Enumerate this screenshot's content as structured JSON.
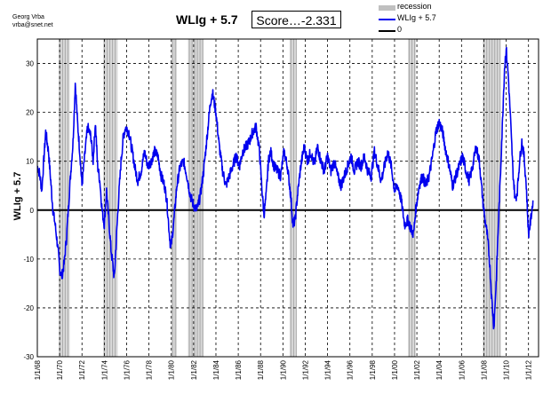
{
  "credit": {
    "line1": "Georg Vrba",
    "line2": "vrba@snet.net"
  },
  "score": "Score…-2.331",
  "chart_data": {
    "type": "line",
    "title": "WLIg + 5.7",
    "ylabel": "WLIg + 5.7",
    "xlabel": "",
    "ylim": [
      -30,
      35
    ],
    "xlim": [
      1968.0,
      2012.9
    ],
    "yticks": [
      -30,
      -20,
      -10,
      0,
      10,
      20,
      30
    ],
    "xtick_labels": [
      "1/1/68",
      "1/1/70",
      "1/1/72",
      "1/1/74",
      "1/1/76",
      "1/1/78",
      "1/1/80",
      "1/1/82",
      "1/1/84",
      "1/1/86",
      "1/1/88",
      "1/1/90",
      "1/1/92",
      "1/1/94",
      "1/1/96",
      "1/1/98",
      "1/1/00",
      "1/1/02",
      "1/1/04",
      "1/1/06",
      "1/1/08",
      "1/1/10",
      "1/1/12"
    ],
    "grid": true,
    "legend_position": "top-right",
    "recessions": [
      [
        1969.9,
        1970.9
      ],
      [
        1973.9,
        1975.2
      ],
      [
        1980.0,
        1980.5
      ],
      [
        1981.5,
        1982.9
      ],
      [
        1990.6,
        1991.2
      ],
      [
        2001.2,
        2001.9
      ],
      [
        2007.9,
        2009.5
      ]
    ],
    "series": [
      {
        "name": "recession",
        "color": "#c0c0c0"
      },
      {
        "name": "WLIg + 5.7",
        "color": "#0000ee",
        "points": [
          [
            1968.0,
            9
          ],
          [
            1968.2,
            7.5
          ],
          [
            1968.4,
            4
          ],
          [
            1968.6,
            11
          ],
          [
            1968.75,
            16
          ],
          [
            1969.0,
            12
          ],
          [
            1969.2,
            6
          ],
          [
            1969.4,
            0
          ],
          [
            1969.6,
            -3
          ],
          [
            1969.8,
            -7
          ],
          [
            1970.0,
            -12
          ],
          [
            1970.2,
            -13.5
          ],
          [
            1970.4,
            -11
          ],
          [
            1970.6,
            -6
          ],
          [
            1970.8,
            1
          ],
          [
            1971.0,
            8
          ],
          [
            1971.2,
            14
          ],
          [
            1971.3,
            20
          ],
          [
            1971.4,
            26
          ],
          [
            1971.6,
            18
          ],
          [
            1971.8,
            12
          ],
          [
            1972.0,
            5
          ],
          [
            1972.2,
            10
          ],
          [
            1972.5,
            17
          ],
          [
            1972.8,
            15
          ],
          [
            1973.0,
            10
          ],
          [
            1973.2,
            18
          ],
          [
            1973.4,
            9
          ],
          [
            1973.6,
            6
          ],
          [
            1973.8,
            0
          ],
          [
            1974.0,
            -3
          ],
          [
            1974.2,
            4
          ],
          [
            1974.4,
            -2
          ],
          [
            1974.6,
            -8
          ],
          [
            1974.8,
            -12
          ],
          [
            1974.9,
            -14
          ],
          [
            1975.1,
            -5
          ],
          [
            1975.3,
            3
          ],
          [
            1975.5,
            10
          ],
          [
            1975.7,
            15
          ],
          [
            1975.9,
            17
          ],
          [
            1976.2,
            16
          ],
          [
            1976.5,
            12
          ],
          [
            1976.8,
            8
          ],
          [
            1977.0,
            6
          ],
          [
            1977.3,
            8
          ],
          [
            1977.6,
            12
          ],
          [
            1977.9,
            9
          ],
          [
            1978.2,
            10
          ],
          [
            1978.5,
            12
          ],
          [
            1978.8,
            11
          ],
          [
            1979.1,
            7
          ],
          [
            1979.4,
            5
          ],
          [
            1979.6,
            2
          ],
          [
            1979.8,
            -4
          ],
          [
            1979.95,
            -8
          ],
          [
            1980.2,
            -3
          ],
          [
            1980.5,
            5
          ],
          [
            1980.8,
            9
          ],
          [
            1981.1,
            10
          ],
          [
            1981.4,
            7
          ],
          [
            1981.7,
            3
          ],
          [
            1982.0,
            1
          ],
          [
            1982.3,
            0
          ],
          [
            1982.6,
            3
          ],
          [
            1982.9,
            8
          ],
          [
            1983.2,
            15
          ],
          [
            1983.5,
            22
          ],
          [
            1983.7,
            24
          ],
          [
            1984.0,
            20
          ],
          [
            1984.3,
            13
          ],
          [
            1984.6,
            8
          ],
          [
            1984.9,
            5
          ],
          [
            1985.2,
            7
          ],
          [
            1985.5,
            9
          ],
          [
            1985.8,
            11
          ],
          [
            1986.1,
            9
          ],
          [
            1986.4,
            12
          ],
          [
            1986.7,
            13
          ],
          [
            1987.0,
            14
          ],
          [
            1987.3,
            16
          ],
          [
            1987.6,
            17
          ],
          [
            1987.9,
            12
          ],
          [
            1988.1,
            5
          ],
          [
            1988.3,
            -1
          ],
          [
            1988.5,
            3
          ],
          [
            1988.7,
            10
          ],
          [
            1988.9,
            12
          ],
          [
            1989.2,
            9
          ],
          [
            1989.5,
            8
          ],
          [
            1989.8,
            7
          ],
          [
            1990.1,
            12
          ],
          [
            1990.4,
            9
          ],
          [
            1990.7,
            3
          ],
          [
            1990.9,
            -3
          ],
          [
            1991.1,
            -2
          ],
          [
            1991.3,
            3
          ],
          [
            1991.6,
            9
          ],
          [
            1991.9,
            13
          ],
          [
            1992.2,
            10
          ],
          [
            1992.5,
            12
          ],
          [
            1992.8,
            9
          ],
          [
            1993.1,
            13
          ],
          [
            1993.4,
            10
          ],
          [
            1993.7,
            8
          ],
          [
            1994.0,
            11
          ],
          [
            1994.3,
            8
          ],
          [
            1994.6,
            10
          ],
          [
            1994.9,
            7
          ],
          [
            1995.2,
            5
          ],
          [
            1995.5,
            7
          ],
          [
            1995.8,
            9
          ],
          [
            1996.1,
            11
          ],
          [
            1996.4,
            8
          ],
          [
            1996.7,
            10
          ],
          [
            1997.0,
            9
          ],
          [
            1997.3,
            11
          ],
          [
            1997.6,
            8
          ],
          [
            1997.9,
            7
          ],
          [
            1998.2,
            12
          ],
          [
            1998.5,
            9
          ],
          [
            1998.8,
            6
          ],
          [
            1999.1,
            9
          ],
          [
            1999.4,
            12
          ],
          [
            1999.7,
            9
          ],
          [
            2000.0,
            4
          ],
          [
            2000.3,
            5
          ],
          [
            2000.6,
            2
          ],
          [
            2000.9,
            -3
          ],
          [
            2001.2,
            -2
          ],
          [
            2001.5,
            -4
          ],
          [
            2001.7,
            -5
          ],
          [
            2001.9,
            0
          ],
          [
            2002.2,
            5
          ],
          [
            2002.5,
            7
          ],
          [
            2002.8,
            5
          ],
          [
            2003.1,
            7
          ],
          [
            2003.4,
            11
          ],
          [
            2003.7,
            16
          ],
          [
            2004.0,
            18
          ],
          [
            2004.3,
            16
          ],
          [
            2004.6,
            12
          ],
          [
            2004.9,
            9
          ],
          [
            2005.2,
            5
          ],
          [
            2005.5,
            7
          ],
          [
            2005.8,
            9
          ],
          [
            2006.1,
            11
          ],
          [
            2006.4,
            8
          ],
          [
            2006.7,
            6
          ],
          [
            2007.0,
            9
          ],
          [
            2007.3,
            13
          ],
          [
            2007.6,
            10
          ],
          [
            2007.9,
            2
          ],
          [
            2008.1,
            -2
          ],
          [
            2008.3,
            -5
          ],
          [
            2008.5,
            -10
          ],
          [
            2008.7,
            -18
          ],
          [
            2008.9,
            -24
          ],
          [
            2009.1,
            -15
          ],
          [
            2009.3,
            -3
          ],
          [
            2009.5,
            8
          ],
          [
            2009.7,
            20
          ],
          [
            2009.85,
            29
          ],
          [
            2010.0,
            33
          ],
          [
            2010.2,
            27
          ],
          [
            2010.4,
            18
          ],
          [
            2010.6,
            8
          ],
          [
            2010.8,
            2
          ],
          [
            2011.0,
            4
          ],
          [
            2011.2,
            10
          ],
          [
            2011.4,
            14
          ],
          [
            2011.6,
            11
          ],
          [
            2011.8,
            5
          ],
          [
            2012.0,
            -5
          ],
          [
            2012.2,
            -2
          ],
          [
            2012.4,
            2
          ]
        ]
      },
      {
        "name": "0",
        "color": "#000000"
      }
    ]
  }
}
